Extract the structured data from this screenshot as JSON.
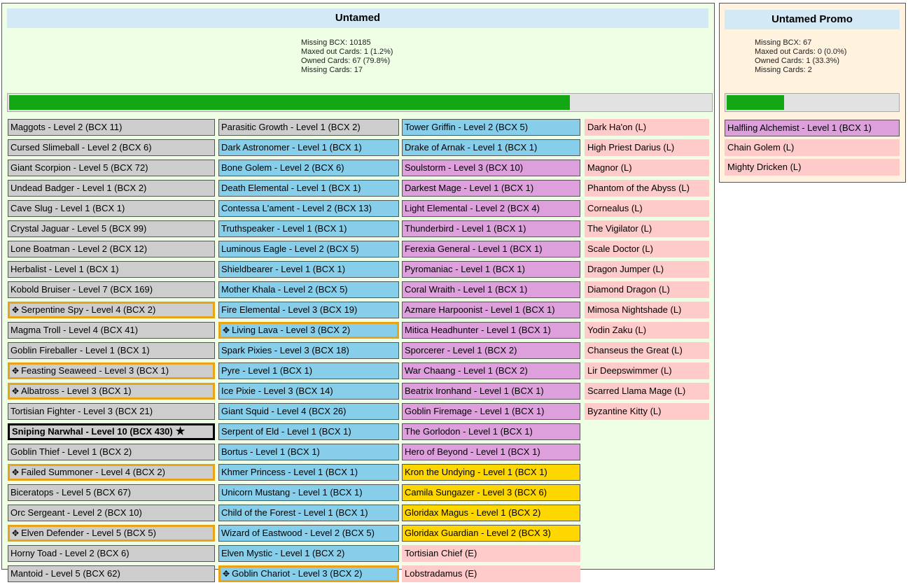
{
  "untamed": {
    "title": "Untamed",
    "stats": [
      "Missing BCX: 10185",
      "Maxed out Cards: 1 (1.2%)",
      "Owned Cards: 67 (79.8%)",
      "Missing Cards: 17"
    ],
    "progress": 0.798,
    "columns": [
      [
        {
          "label": "Maggots - Level 2 (BCX 11)",
          "color": "gray"
        },
        {
          "label": "Cursed Slimeball - Level 2 (BCX 6)",
          "color": "gray"
        },
        {
          "label": "Giant Scorpion - Level 5 (BCX 72)",
          "color": "gray"
        },
        {
          "label": "Undead Badger - Level 1 (BCX 2)",
          "color": "gray"
        },
        {
          "label": "Cave Slug - Level 1 (BCX 1)",
          "color": "gray"
        },
        {
          "label": "Crystal Jaguar - Level 5 (BCX 99)",
          "color": "gray"
        },
        {
          "label": "Lone Boatman - Level 2 (BCX 12)",
          "color": "gray"
        },
        {
          "label": "Herbalist - Level 1 (BCX 1)",
          "color": "gray"
        },
        {
          "label": "Kobold Bruiser - Level 7 (BCX 169)",
          "color": "gray"
        },
        {
          "label": "Serpentine Spy - Level 4 (BCX 2)",
          "color": "gray",
          "gold": true
        },
        {
          "label": "Magma Troll - Level 4 (BCX 41)",
          "color": "gray"
        },
        {
          "label": "Goblin Fireballer - Level 1 (BCX 1)",
          "color": "gray"
        },
        {
          "label": "Feasting Seaweed - Level 3 (BCX 1)",
          "color": "gray",
          "gold": true
        },
        {
          "label": "Albatross - Level 3 (BCX 1)",
          "color": "gray",
          "gold": true
        },
        {
          "label": "Tortisian Fighter - Level 3 (BCX 21)",
          "color": "gray"
        },
        {
          "label": "Sniping Narwhal - Level 10 (BCX 430)",
          "color": "gray",
          "maxed": true
        },
        {
          "label": "Goblin Thief - Level 1 (BCX 2)",
          "color": "gray"
        },
        {
          "label": "Failed Summoner - Level 4 (BCX 2)",
          "color": "gray",
          "gold": true
        },
        {
          "label": "Biceratops - Level 5 (BCX 67)",
          "color": "gray"
        },
        {
          "label": "Orc Sergeant - Level 2 (BCX 10)",
          "color": "gray"
        },
        {
          "label": "Elven Defender - Level 5 (BCX 5)",
          "color": "gray",
          "gold": true
        },
        {
          "label": "Horny Toad - Level 2 (BCX 6)",
          "color": "gray"
        },
        {
          "label": "Mantoid - Level 5 (BCX 62)",
          "color": "gray"
        }
      ],
      [
        {
          "label": "Parasitic Growth - Level 1 (BCX 2)",
          "color": "gray"
        },
        {
          "label": "Dark Astronomer - Level 1 (BCX 1)",
          "color": "blue"
        },
        {
          "label": "Bone Golem - Level 2 (BCX 6)",
          "color": "blue"
        },
        {
          "label": "Death Elemental - Level 1 (BCX 1)",
          "color": "blue"
        },
        {
          "label": "Contessa L'ament - Level 2 (BCX 13)",
          "color": "blue"
        },
        {
          "label": "Truthspeaker - Level 1 (BCX 1)",
          "color": "blue"
        },
        {
          "label": "Luminous Eagle - Level 2 (BCX 5)",
          "color": "blue"
        },
        {
          "label": "Shieldbearer - Level 1 (BCX 1)",
          "color": "blue"
        },
        {
          "label": "Mother Khala - Level 2 (BCX 5)",
          "color": "blue"
        },
        {
          "label": "Fire Elemental - Level 3 (BCX 19)",
          "color": "blue"
        },
        {
          "label": "Living Lava - Level 3 (BCX 2)",
          "color": "blue",
          "gold": true
        },
        {
          "label": "Spark Pixies - Level 3 (BCX 18)",
          "color": "blue"
        },
        {
          "label": "Pyre - Level 1 (BCX 1)",
          "color": "blue"
        },
        {
          "label": "Ice Pixie - Level 3 (BCX 14)",
          "color": "blue"
        },
        {
          "label": "Giant Squid - Level 4 (BCX 26)",
          "color": "blue"
        },
        {
          "label": "Serpent of Eld - Level 1 (BCX 1)",
          "color": "blue"
        },
        {
          "label": "Bortus - Level 1 (BCX 1)",
          "color": "blue"
        },
        {
          "label": "Khmer Princess - Level 1 (BCX 1)",
          "color": "blue"
        },
        {
          "label": "Unicorn Mustang - Level 1 (BCX 1)",
          "color": "blue"
        },
        {
          "label": "Child of the Forest - Level 1 (BCX 1)",
          "color": "blue"
        },
        {
          "label": "Wizard of Eastwood - Level 2 (BCX 5)",
          "color": "blue"
        },
        {
          "label": "Elven Mystic - Level 1 (BCX 2)",
          "color": "blue"
        },
        {
          "label": "Goblin Chariot - Level 3 (BCX 2)",
          "color": "blue",
          "gold": true
        }
      ],
      [
        {
          "label": "Tower Griffin - Level 2 (BCX 5)",
          "color": "blue"
        },
        {
          "label": "Drake of Arnak - Level 1 (BCX 1)",
          "color": "blue"
        },
        {
          "label": "Soulstorm - Level 3 (BCX 10)",
          "color": "purple"
        },
        {
          "label": "Darkest Mage - Level 1 (BCX 1)",
          "color": "purple"
        },
        {
          "label": "Light Elemental - Level 2 (BCX 4)",
          "color": "purple"
        },
        {
          "label": "Thunderbird - Level 1 (BCX 1)",
          "color": "purple"
        },
        {
          "label": "Ferexia General - Level 1 (BCX 1)",
          "color": "purple"
        },
        {
          "label": "Pyromaniac - Level 1 (BCX 1)",
          "color": "purple"
        },
        {
          "label": "Coral Wraith - Level 1 (BCX 1)",
          "color": "purple"
        },
        {
          "label": "Azmare Harpoonist - Level 1 (BCX 1)",
          "color": "purple"
        },
        {
          "label": "Mitica Headhunter - Level 1 (BCX 1)",
          "color": "purple"
        },
        {
          "label": "Sporcerer - Level 1 (BCX 2)",
          "color": "purple"
        },
        {
          "label": "War Chaang - Level 1 (BCX 2)",
          "color": "purple"
        },
        {
          "label": "Beatrix Ironhand - Level 1 (BCX 1)",
          "color": "purple"
        },
        {
          "label": "Goblin Firemage - Level 1 (BCX 1)",
          "color": "purple"
        },
        {
          "label": "The Gorlodon - Level 1 (BCX 1)",
          "color": "purple"
        },
        {
          "label": "Hero of Beyond - Level 1 (BCX 1)",
          "color": "purple"
        },
        {
          "label": "Kron the Undying - Level 1 (BCX 1)",
          "color": "gold"
        },
        {
          "label": "Camila Sungazer - Level 3 (BCX 6)",
          "color": "gold"
        },
        {
          "label": "Gloridax Magus - Level 1 (BCX 2)",
          "color": "gold"
        },
        {
          "label": "Gloridax Guardian - Level 2 (BCX 3)",
          "color": "gold"
        },
        {
          "label": "Tortisian Chief (E)",
          "color": "pink"
        },
        {
          "label": "Lobstradamus (E)",
          "color": "pink"
        }
      ],
      [
        {
          "label": "Dark Ha'on (L)",
          "color": "pink"
        },
        {
          "label": "High Priest Darius (L)",
          "color": "pink"
        },
        {
          "label": "Magnor (L)",
          "color": "pink"
        },
        {
          "label": "Phantom of the Abyss (L)",
          "color": "pink"
        },
        {
          "label": "Cornealus (L)",
          "color": "pink"
        },
        {
          "label": "The Vigilator (L)",
          "color": "pink"
        },
        {
          "label": "Scale Doctor (L)",
          "color": "pink"
        },
        {
          "label": "Dragon Jumper (L)",
          "color": "pink"
        },
        {
          "label": "Diamond Dragon (L)",
          "color": "pink"
        },
        {
          "label": "Mimosa Nightshade (L)",
          "color": "pink"
        },
        {
          "label": "Yodin Zaku (L)",
          "color": "pink"
        },
        {
          "label": "Chanseus the Great (L)",
          "color": "pink"
        },
        {
          "label": "Lir Deepswimmer (L)",
          "color": "pink"
        },
        {
          "label": "Scarred Llama Mage (L)",
          "color": "pink"
        },
        {
          "label": "Byzantine Kitty (L)",
          "color": "pink"
        }
      ]
    ]
  },
  "promo": {
    "title": "Untamed Promo",
    "stats": [
      "Missing BCX: 67",
      "Maxed out Cards: 0 (0.0%)",
      "Owned Cards: 1 (33.3%)",
      "Missing Cards: 2"
    ],
    "progress": 0.333,
    "cards": [
      {
        "label": "Halfling Alchemist - Level 1 (BCX 1)",
        "color": "purple"
      },
      {
        "label": "Chain Golem (L)",
        "color": "pink"
      },
      {
        "label": "Mighty Dricken (L)",
        "color": "pink"
      }
    ]
  },
  "icons": {
    "gold_foil": "puzzle-star-icon",
    "maxed": "star-icon"
  }
}
